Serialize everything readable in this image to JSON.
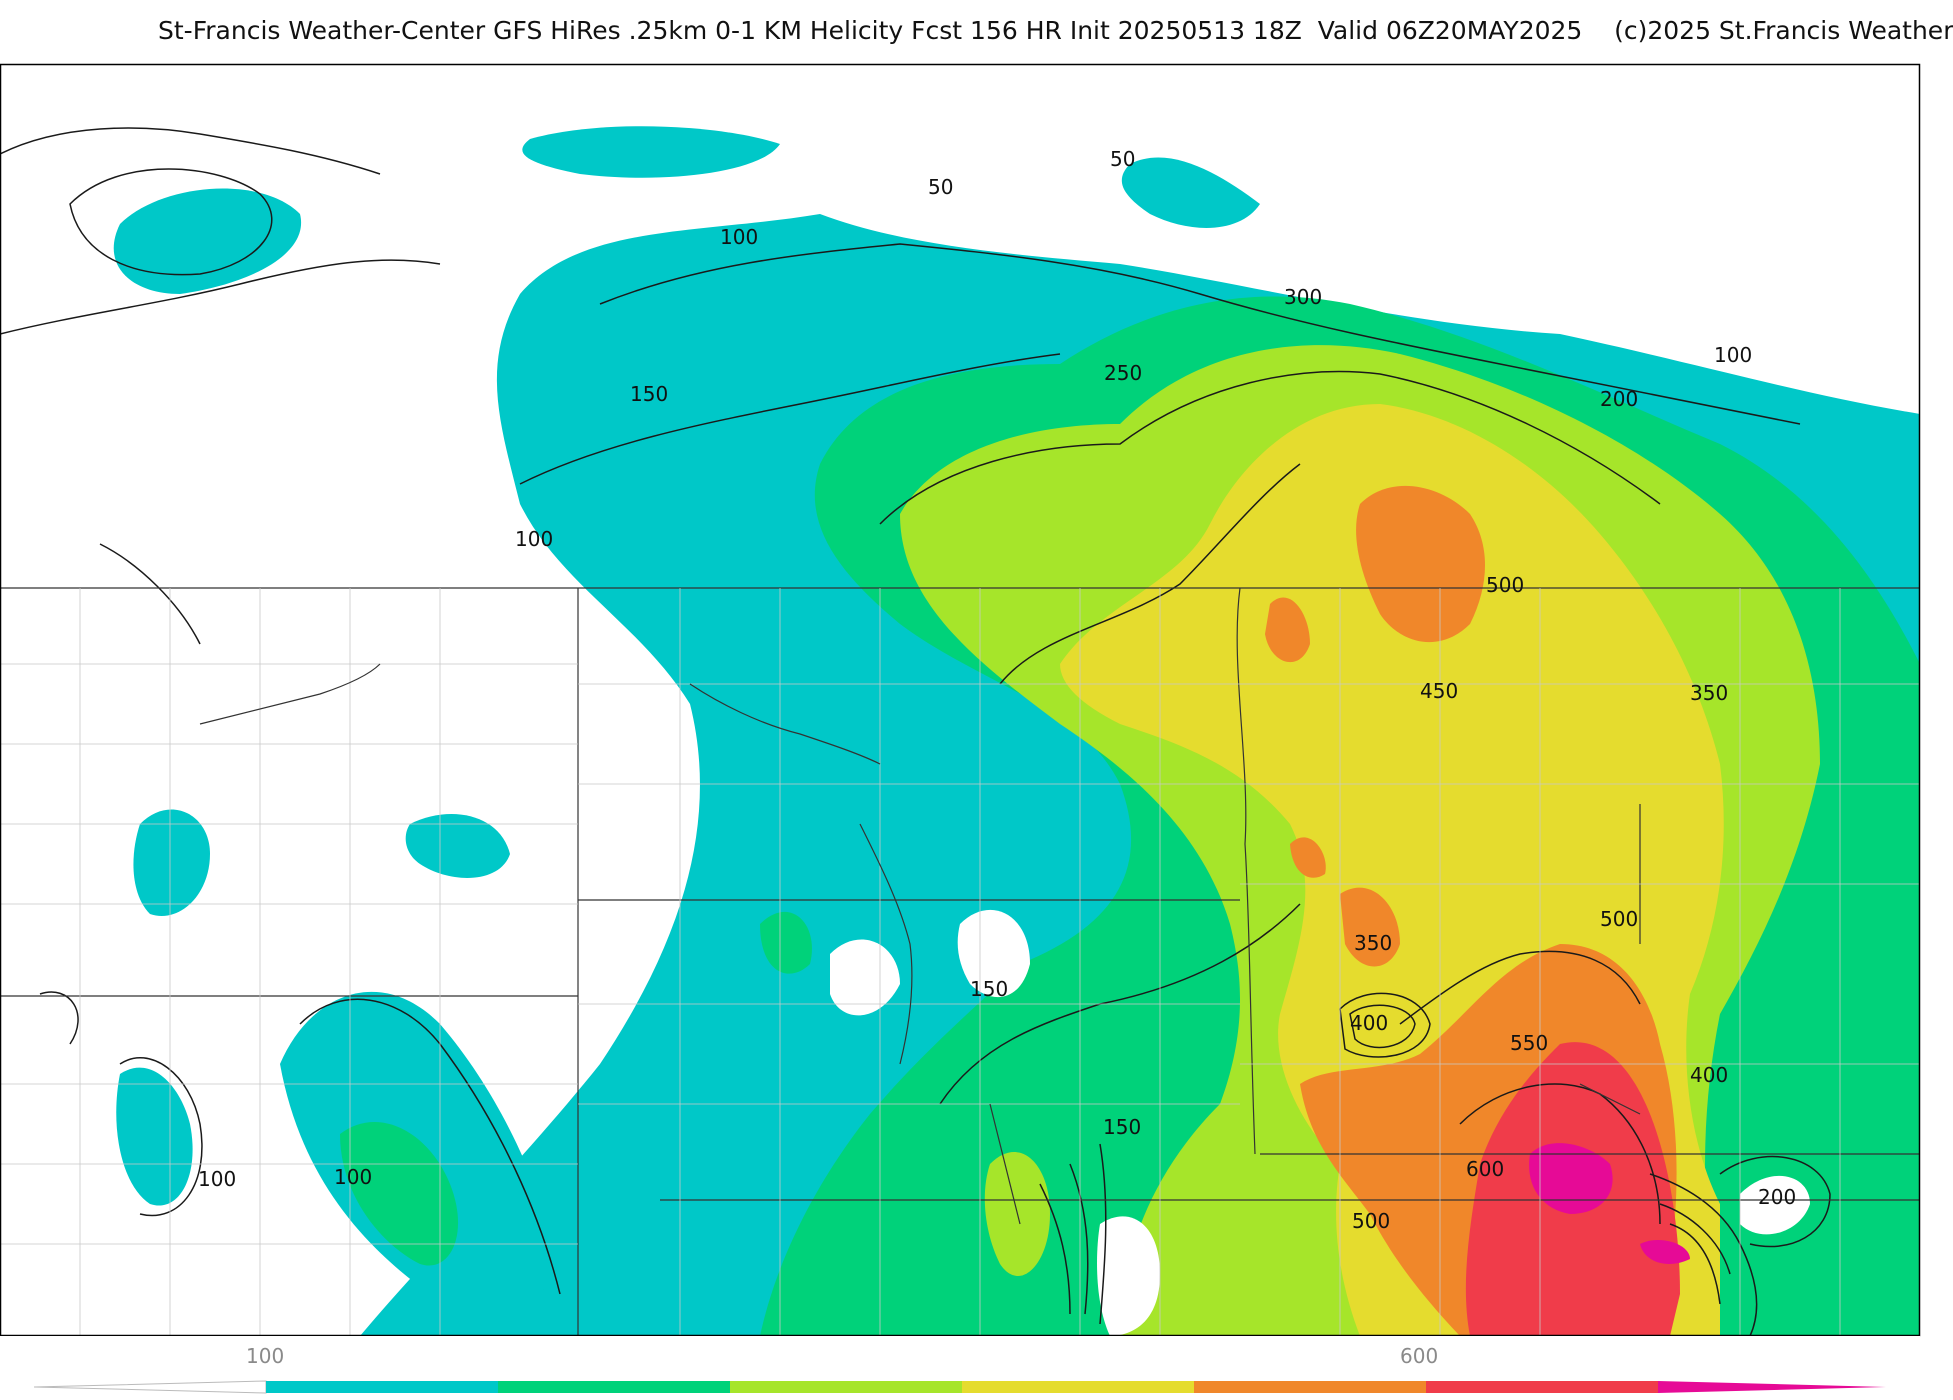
{
  "header": {
    "title": "St-Francis Weather-Center GFS HiRes .25km 0-1 KM Helicity Fcst 156 HR Init 20250513 18Z  Valid 06Z20MAY2025    (c)2025 St.Francis Weather"
  },
  "map": {
    "field": "0-1 KM Helicity",
    "contour_labels": [
      "50",
      "50",
      "100",
      "300",
      "250",
      "150",
      "100",
      "200",
      "100",
      "500",
      "450",
      "350",
      "150",
      "500",
      "350",
      "400",
      "550",
      "400",
      "150",
      "600",
      "200",
      "500",
      "100",
      "100"
    ]
  },
  "legend": {
    "tick_labels": [
      "100",
      "600"
    ],
    "colors": [
      "#ffffff",
      "#00c8c8",
      "#00d27a",
      "#a6e52a",
      "#e5dc2e",
      "#f0872a",
      "#f03c4a",
      "#e60a96"
    ]
  }
}
